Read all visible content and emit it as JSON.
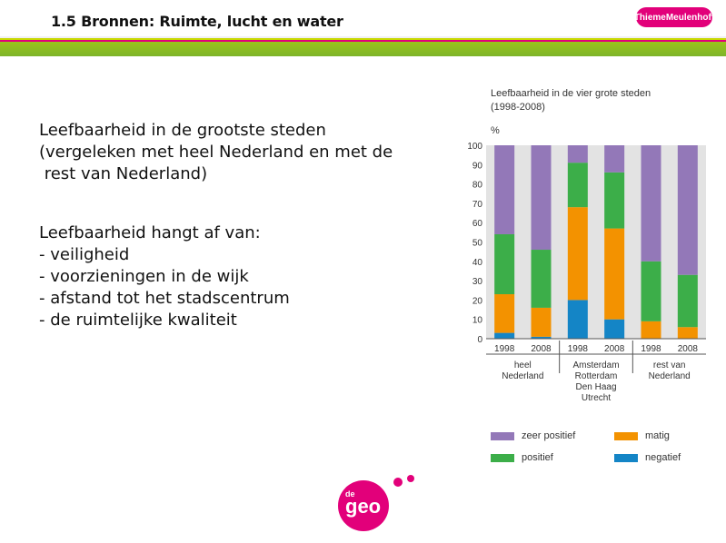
{
  "header": {
    "title": "1.5 Bronnen: Ruimte, lucht en water",
    "brand": "ThiemeMeulenhoff"
  },
  "content": {
    "heading_lines": [
      "Leefbaarheid in de grootste steden",
      "(vergeleken met heel Nederland en met de",
      " rest van Nederland)"
    ],
    "factors_lines": [
      "Leefbaarheid hangt af van:",
      "- veiligheid",
      "- voorzieningen in de wijk",
      "- afstand tot het stadscentrum",
      "- de ruimtelijke kwaliteit"
    ]
  },
  "logo": {
    "prefix": "de",
    "text": "geo"
  },
  "chart_data": {
    "type": "bar",
    "stacked": true,
    "title": "Leefbaarheid in de vier grote steden",
    "subtitle": "(1998-2008)",
    "ylabel": "%",
    "ylim": [
      0,
      100
    ],
    "yticks": [
      0,
      10,
      20,
      30,
      40,
      50,
      60,
      70,
      80,
      90,
      100
    ],
    "categories": [
      "1998",
      "2008",
      "1998",
      "2008",
      "1998",
      "2008"
    ],
    "groups": [
      {
        "label": [
          "heel",
          "Nederland"
        ]
      },
      {
        "label": [
          "Amsterdam",
          "Rotterdam",
          "Den Haag",
          "Utrecht"
        ]
      },
      {
        "label": [
          "rest van",
          "Nederland"
        ]
      }
    ],
    "series": [
      {
        "name": "negatief",
        "color": "#1485c6",
        "values": [
          3,
          1,
          20,
          10,
          0,
          0
        ]
      },
      {
        "name": "matig",
        "color": "#f39200",
        "values": [
          20,
          15,
          48,
          47,
          9,
          6
        ]
      },
      {
        "name": "positief",
        "color": "#3cae49",
        "values": [
          31,
          30,
          23,
          29,
          31,
          27
        ]
      },
      {
        "name": "zeer positief",
        "color": "#9378b8",
        "values": [
          46,
          54,
          9,
          14,
          60,
          67
        ]
      }
    ],
    "legend_order": [
      "zeer positief",
      "matig",
      "positief",
      "negatief"
    ],
    "legend_position": "bottom"
  }
}
